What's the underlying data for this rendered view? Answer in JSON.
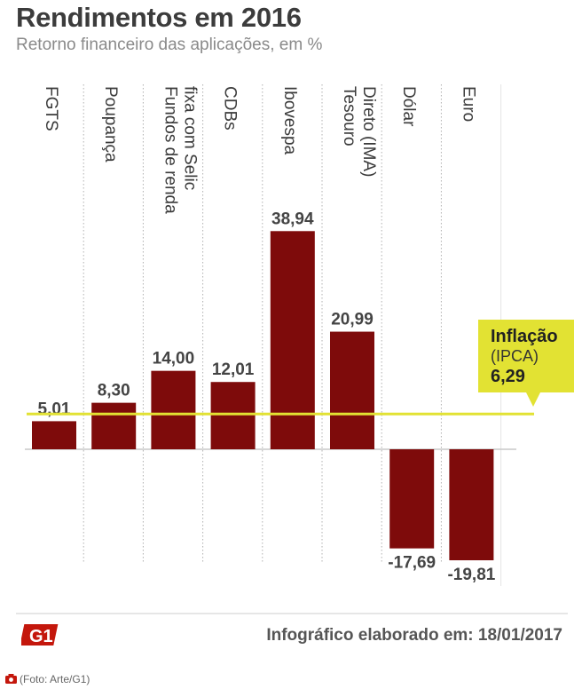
{
  "title": "Rendimentos em 2016",
  "subtitle": "Retorno financeiro das aplicações, em %",
  "chart_data": {
    "type": "bar",
    "categories": [
      "FGTS",
      "Poupança",
      "Fundos de renda fixa com Selic",
      "CDBs",
      "Ibovespa",
      "Tesouro Direto (IMA)",
      "Dólar",
      "Euro"
    ],
    "category_lines": [
      [
        "FGTS"
      ],
      [
        "Poupança"
      ],
      [
        "Fundos de renda",
        "fixa com Selic"
      ],
      [
        "CDBs"
      ],
      [
        "Ibovespa"
      ],
      [
        "Tesouro",
        "Direto (IMA)"
      ],
      [
        "Dólar"
      ],
      [
        "Euro"
      ]
    ],
    "values": [
      5.01,
      8.3,
      14.0,
      12.01,
      38.94,
      20.99,
      -17.69,
      -19.81
    ],
    "value_labels": [
      "5,01",
      "8,30",
      "14,00",
      "12,01",
      "38,94",
      "20,99",
      "-17,69",
      "-19,81"
    ],
    "ylim": [
      -25,
      40
    ],
    "bar_color": "#7e0b0b",
    "reference_line": {
      "value": 6.29,
      "label": "Inflação",
      "sublabel": "(IPCA)",
      "value_label": "6,29",
      "color": "#e2e233"
    }
  },
  "footer": {
    "logo": "G1",
    "text": "Infográfico elaborado em: 18/01/2017",
    "credit": "(Foto: Arte/G1)",
    "accent_color": "#c4170c"
  }
}
